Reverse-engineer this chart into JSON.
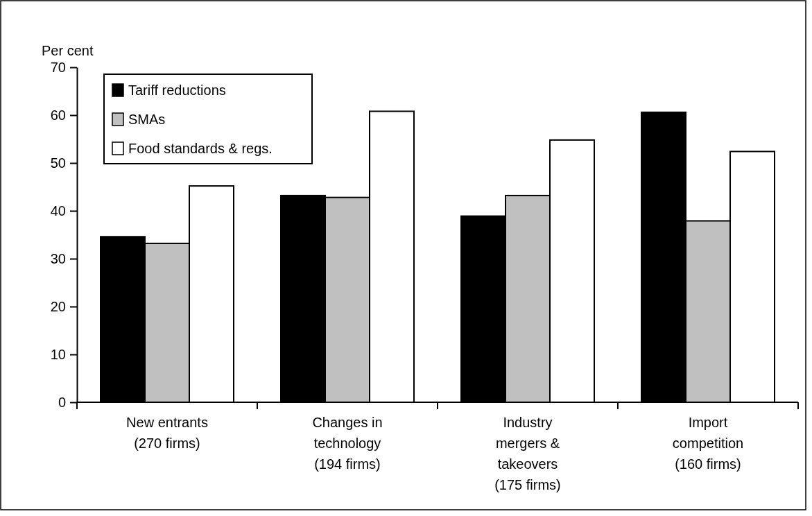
{
  "chart_data": {
    "type": "bar",
    "ylabel": "Per cent",
    "categories": [
      "New entrants (270 firms)",
      "Changes in technology (194 firms)",
      "Industry mergers & takeovers (175 firms)",
      "Import competition (160 firms)"
    ],
    "series": [
      {
        "name": "Tariff reductions",
        "color": "#000000",
        "values": [
          34.6,
          43.2,
          38.9,
          60.6
        ]
      },
      {
        "name": "SMAs",
        "color": "#c0c0c0",
        "values": [
          33.2,
          42.8,
          43.2,
          37.9
        ]
      },
      {
        "name": "Food standards & regs.",
        "color": "#ffffff",
        "values": [
          45.2,
          60.8,
          54.8,
          52.4
        ]
      }
    ],
    "ylim": [
      0,
      70
    ],
    "yticks": [
      0,
      10,
      20,
      30,
      40,
      50,
      60,
      70
    ],
    "grid": false,
    "legend": "top left"
  }
}
